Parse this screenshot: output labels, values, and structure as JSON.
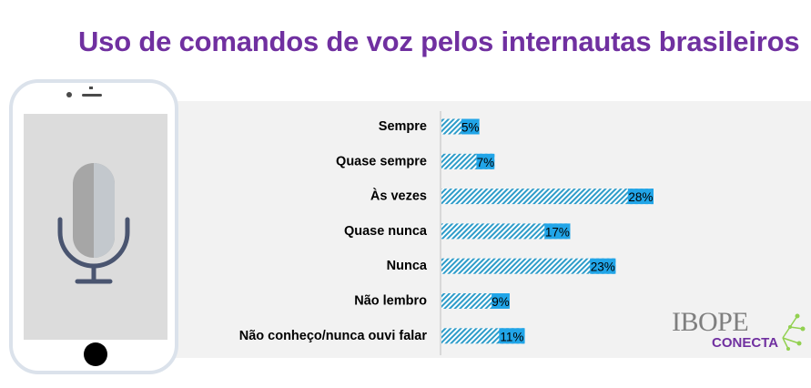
{
  "title": "Uso de comandos de voz pelos internautas brasileiros",
  "logo": {
    "brand": "IBOPE",
    "sub": "CONECTA"
  },
  "colors": {
    "title": "#7030a0",
    "bar_stripe": "#2e9cc9",
    "label_box": "#21a5e8",
    "panel": "#f2f2f2",
    "phone_frame": "#dbe2eb"
  },
  "icons": [
    "phone-icon",
    "microphone-icon",
    "ibope-logo-mark"
  ],
  "chart_data": {
    "type": "bar",
    "orientation": "horizontal",
    "title": "Uso de comandos de voz pelos internautas brasileiros",
    "categories": [
      "Sempre",
      "Quase sempre",
      "Às vezes",
      "Quase nunca",
      "Nunca",
      "Não lembro",
      "Não conheço/nunca ouvi falar"
    ],
    "values": [
      5,
      7,
      28,
      17,
      23,
      9,
      11
    ],
    "value_labels": [
      "5%",
      "7%",
      "28%",
      "17%",
      "23%",
      "9%",
      "11%"
    ],
    "unit": "%",
    "xlim": [
      0,
      28
    ],
    "grid": false,
    "legend": "none"
  }
}
